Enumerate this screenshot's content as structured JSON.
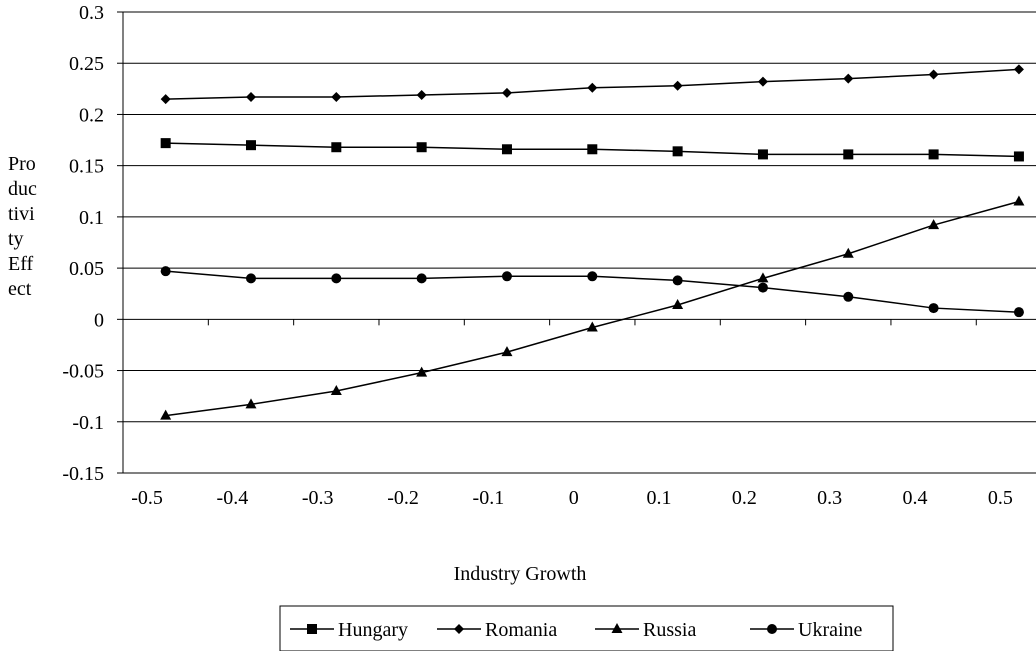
{
  "chart_data": {
    "type": "line",
    "x": [
      -0.47,
      -0.37,
      -0.27,
      -0.17,
      -0.07,
      0.03,
      0.13,
      0.23,
      0.33,
      0.43,
      0.53
    ],
    "xticks": [
      -0.5,
      -0.4,
      -0.3,
      -0.2,
      -0.1,
      0,
      0.1,
      0.2,
      0.3,
      0.4,
      0.5
    ],
    "xtick_labels": [
      "-0.5",
      "-0.4",
      "-0.3",
      "-0.2",
      "-0.1",
      "0",
      "0.1",
      "0.2",
      "0.3",
      "0.4",
      "0.5"
    ],
    "yticks": [
      -0.15,
      -0.1,
      -0.05,
      0,
      0.05,
      0.1,
      0.15,
      0.2,
      0.25,
      0.3
    ],
    "ytick_labels": [
      "-0.15",
      "-0.1",
      "-0.05",
      "0",
      "0.05",
      "0.1",
      "0.15",
      "0.2",
      "0.25",
      "0.3"
    ],
    "ylim": [
      -0.15,
      0.3
    ],
    "xlim": [
      -0.52,
      0.55
    ],
    "xlabel": "Industry Growth",
    "ylabel_lines": [
      "Pro",
      "duc",
      "tivi",
      "ty",
      "Eff",
      "ect"
    ],
    "grid": "horizontal",
    "legend_position": "bottom",
    "series": [
      {
        "name": "Hungary",
        "marker": "square",
        "values": [
          0.172,
          0.17,
          0.168,
          0.168,
          0.166,
          0.166,
          0.164,
          0.161,
          0.161,
          0.161,
          0.159
        ]
      },
      {
        "name": "Romania",
        "marker": "diamond",
        "values": [
          0.215,
          0.217,
          0.217,
          0.219,
          0.221,
          0.226,
          0.228,
          0.232,
          0.235,
          0.239,
          0.244
        ]
      },
      {
        "name": "Russia",
        "marker": "triangle",
        "values": [
          -0.094,
          -0.083,
          -0.07,
          -0.052,
          -0.032,
          -0.008,
          0.014,
          0.04,
          0.064,
          0.092,
          0.115
        ]
      },
      {
        "name": "Ukraine",
        "marker": "circle",
        "values": [
          0.047,
          0.04,
          0.04,
          0.04,
          0.042,
          0.042,
          0.038,
          0.031,
          0.022,
          0.011,
          0.007
        ]
      }
    ]
  }
}
